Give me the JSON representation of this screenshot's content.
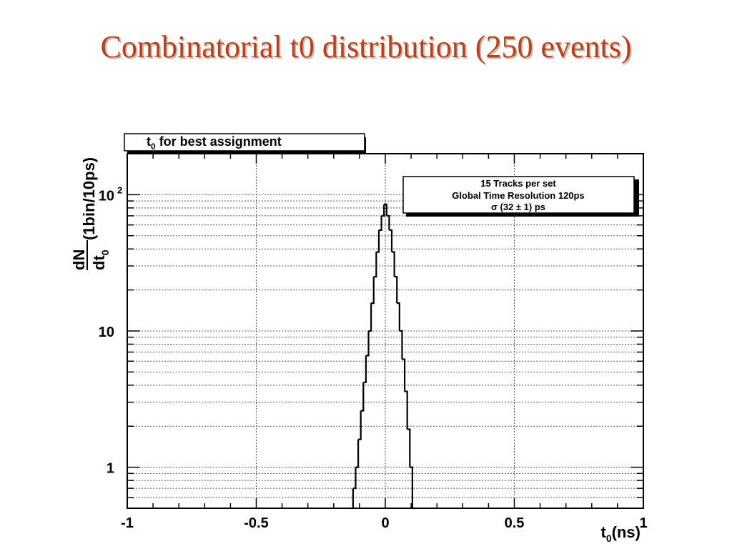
{
  "slide": {
    "title": "Combinatorial t0 distribution (250 events)"
  },
  "chart_data": {
    "type": "bar",
    "title_box": {
      "main": "t",
      "sub": "0",
      "rest": " for best assignment"
    },
    "stats_box": {
      "line1": "15 Tracks per set",
      "line2": "Global Time Resolution 120ps",
      "line3": "σ (32 ± 1) ps"
    },
    "xlabel": {
      "main": "t",
      "sub": "0",
      "rest": "(ns)"
    },
    "ylabel": {
      "num": "dN",
      "den_main": "dt",
      "den_sub": "0",
      "rest": "(1bin/10ps)"
    },
    "xlim": [
      -1,
      1
    ],
    "ylim": [
      0.5,
      200
    ],
    "y_scale": "log",
    "grid": true,
    "x_ticks": [
      {
        "value": -1,
        "label": "-1"
      },
      {
        "value": -0.5,
        "label": "-0.5"
      },
      {
        "value": 0,
        "label": "0"
      },
      {
        "value": 0.5,
        "label": "0.5"
      },
      {
        "value": 1,
        "label": "1"
      }
    ],
    "y_ticks": [
      {
        "value": 1,
        "label": "1"
      },
      {
        "value": 10,
        "label": "10"
      },
      {
        "value": 100,
        "label": "10",
        "exponent": "2"
      }
    ],
    "bin_width": 0.01,
    "bins_x": [
      -0.13,
      -0.12,
      -0.11,
      -0.1,
      -0.09,
      -0.08,
      -0.07,
      -0.06,
      -0.05,
      -0.04,
      -0.03,
      -0.02,
      -0.01,
      0.0,
      0.01,
      0.02,
      0.03,
      0.04,
      0.05,
      0.06,
      0.07,
      0.08,
      0.09,
      0.1,
      0.11
    ],
    "values": [
      0.5,
      0.7,
      1,
      1.6,
      2.6,
      4.2,
      6.6,
      10,
      16,
      25,
      38,
      55,
      70,
      85,
      70,
      55,
      38,
      25,
      16,
      10,
      6.2,
      3.6,
      1.9,
      1,
      0.5
    ]
  }
}
